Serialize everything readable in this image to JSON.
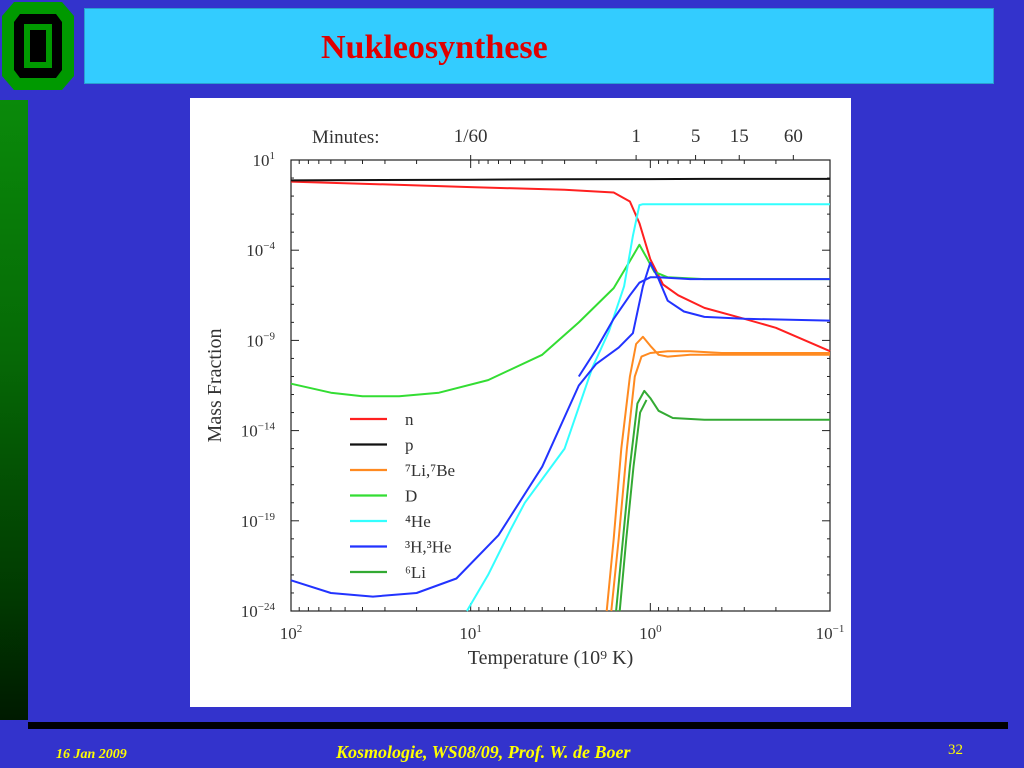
{
  "slide": {
    "title": "Nukleosynthese",
    "footer_date": "16 Jan  2009",
    "footer_course": "Kosmologie,  WS08/09,  Prof. W. de Boer",
    "page_number": "32",
    "colors": {
      "background": "#3333cc",
      "title_bar": "#33ccff",
      "title_text": "#e00000",
      "footer_text": "#ffff00"
    }
  },
  "chart_data": {
    "type": "line",
    "xlabel": "Temperature (10⁹ K)",
    "ylabel": "Mass Fraction",
    "x_scale": "log",
    "x_reversed": true,
    "xlim": [
      100,
      0.1
    ],
    "ylim_log10": [
      -24,
      1
    ],
    "top_axis": {
      "label": "Minutes:",
      "ticks": [
        {
          "label": "1/60",
          "T": 10.0
        },
        {
          "label": "1",
          "T": 1.2
        },
        {
          "label": "5",
          "T": 0.56
        },
        {
          "label": "15",
          "T": 0.32
        },
        {
          "label": "60",
          "T": 0.16
        }
      ]
    },
    "x_tick_labels": [
      {
        "base": "10",
        "exp": "2",
        "T": 100
      },
      {
        "base": "10",
        "exp": "1",
        "T": 10
      },
      {
        "base": "10",
        "exp": "0",
        "T": 1
      },
      {
        "base": "10",
        "exp": "−1",
        "T": 0.1
      }
    ],
    "y_tick_labels": [
      {
        "base": "10",
        "exp": "1",
        "v": 1
      },
      {
        "base": "10",
        "exp": "−4",
        "v": -4
      },
      {
        "base": "10",
        "exp": "−9",
        "v": -9
      },
      {
        "base": "10",
        "exp": "−14",
        "v": -14
      },
      {
        "base": "10",
        "exp": "−19",
        "v": -19
      },
      {
        "base": "10",
        "exp": "−24",
        "v": -24
      }
    ],
    "legend_placement": "center-left",
    "series": [
      {
        "name": "n",
        "color": "#ff2020",
        "points": [
          [
            100,
            -0.2
          ],
          [
            30,
            -0.35
          ],
          [
            10,
            -0.5
          ],
          [
            3,
            -0.65
          ],
          [
            1.6,
            -0.8
          ],
          [
            1.3,
            -1.3
          ],
          [
            1.15,
            -2.5
          ],
          [
            1.0,
            -4.5
          ],
          [
            0.85,
            -5.9
          ],
          [
            0.7,
            -6.5
          ],
          [
            0.5,
            -7.2
          ],
          [
            0.3,
            -7.8
          ],
          [
            0.2,
            -8.3
          ],
          [
            0.1,
            -9.6
          ]
        ]
      },
      {
        "name": "p",
        "color": "#111111",
        "points": [
          [
            100,
            -0.13
          ],
          [
            30,
            -0.11
          ],
          [
            10,
            -0.09
          ],
          [
            3,
            -0.07
          ],
          [
            1,
            -0.06
          ],
          [
            0.5,
            -0.05
          ],
          [
            0.1,
            -0.05
          ]
        ]
      },
      {
        "name": "⁷Li,⁷Be",
        "color": "#ff8a20",
        "points": [
          [
            1.75,
            -24
          ],
          [
            1.6,
            -20
          ],
          [
            1.45,
            -15
          ],
          [
            1.3,
            -11
          ],
          [
            1.2,
            -9.2
          ],
          [
            1.1,
            -8.8
          ],
          [
            1.0,
            -9.3
          ],
          [
            0.9,
            -9.8
          ],
          [
            0.8,
            -9.9
          ],
          [
            0.6,
            -9.8
          ],
          [
            0.4,
            -9.8
          ],
          [
            0.1,
            -9.8
          ]
        ],
        "points_2": [
          [
            1.65,
            -24
          ],
          [
            1.5,
            -20
          ],
          [
            1.35,
            -15
          ],
          [
            1.22,
            -11
          ],
          [
            1.12,
            -9.9
          ],
          [
            1.0,
            -9.7
          ],
          [
            0.8,
            -9.6
          ],
          [
            0.6,
            -9.6
          ],
          [
            0.4,
            -9.7
          ],
          [
            0.1,
            -9.7
          ]
        ]
      },
      {
        "name": "D",
        "color": "#33dd33",
        "points": [
          [
            100,
            -11.4
          ],
          [
            60,
            -11.9
          ],
          [
            40,
            -12.1
          ],
          [
            25,
            -12.1
          ],
          [
            15,
            -11.9
          ],
          [
            8,
            -11.2
          ],
          [
            4,
            -9.8
          ],
          [
            2.5,
            -8
          ],
          [
            1.6,
            -6.1
          ],
          [
            1.3,
            -4.6
          ],
          [
            1.15,
            -3.7
          ],
          [
            1.05,
            -4.4
          ],
          [
            0.95,
            -5.2
          ],
          [
            0.8,
            -5.5
          ],
          [
            0.5,
            -5.6
          ],
          [
            0.1,
            -5.6
          ]
        ]
      },
      {
        "name": "⁴He",
        "color": "#33ffff",
        "points": [
          [
            10.5,
            -24
          ],
          [
            8,
            -22
          ],
          [
            6,
            -19.5
          ],
          [
            5,
            -18
          ],
          [
            3,
            -15
          ],
          [
            2.1,
            -10.5
          ],
          [
            1.7,
            -8.5
          ],
          [
            1.4,
            -6
          ],
          [
            1.25,
            -3.2
          ],
          [
            1.15,
            -1.5
          ],
          [
            1.1,
            -1.45
          ],
          [
            0.7,
            -1.45
          ],
          [
            0.1,
            -1.45
          ]
        ]
      },
      {
        "name": "³H,³He",
        "color": "#2233ff",
        "points": [
          [
            100,
            -22.3
          ],
          [
            60,
            -23
          ],
          [
            35,
            -23.2
          ],
          [
            20,
            -23
          ],
          [
            12,
            -22.2
          ],
          [
            7,
            -19.8
          ],
          [
            4,
            -16
          ],
          [
            2.5,
            -11.5
          ],
          [
            2.0,
            -10.3
          ],
          [
            1.5,
            -9.4
          ],
          [
            1.25,
            -8.6
          ],
          [
            1.1,
            -6
          ],
          [
            1.0,
            -4.7
          ],
          [
            0.9,
            -5.6
          ],
          [
            0.8,
            -6.8
          ],
          [
            0.65,
            -7.4
          ],
          [
            0.5,
            -7.7
          ],
          [
            0.3,
            -7.8
          ],
          [
            0.1,
            -7.9
          ]
        ],
        "points_2": [
          [
            2.5,
            -11
          ],
          [
            2.0,
            -9.5
          ],
          [
            1.6,
            -7.8
          ],
          [
            1.3,
            -6.5
          ],
          [
            1.15,
            -5.8
          ],
          [
            1.0,
            -5.5
          ],
          [
            0.9,
            -5.5
          ],
          [
            0.6,
            -5.6
          ],
          [
            0.1,
            -5.6
          ]
        ]
      },
      {
        "name": "⁶Li",
        "color": "#33aa33",
        "points": [
          [
            1.55,
            -24
          ],
          [
            1.42,
            -20
          ],
          [
            1.3,
            -16
          ],
          [
            1.18,
            -12.5
          ],
          [
            1.08,
            -11.8
          ],
          [
            1.0,
            -12.2
          ],
          [
            0.9,
            -12.9
          ],
          [
            0.75,
            -13.3
          ],
          [
            0.5,
            -13.4
          ],
          [
            0.1,
            -13.4
          ]
        ],
        "points_2": [
          [
            1.48,
            -24
          ],
          [
            1.36,
            -20
          ],
          [
            1.24,
            -16
          ],
          [
            1.14,
            -13
          ],
          [
            1.05,
            -12.3
          ]
        ]
      }
    ]
  }
}
